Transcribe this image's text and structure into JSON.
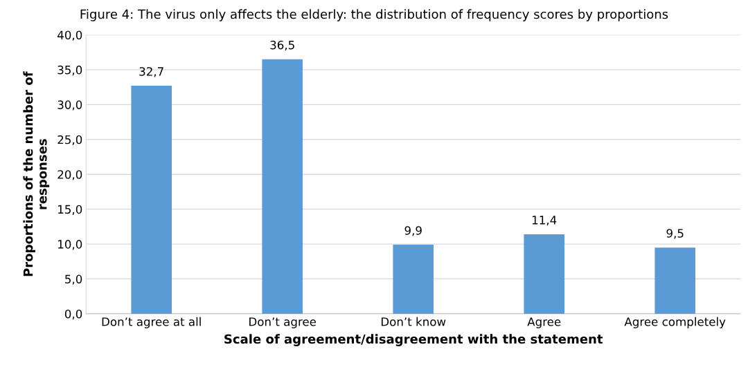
{
  "chart_data": {
    "type": "bar",
    "title": "Figure 4: The virus only affects the elderly: the distribution of frequency scores by proportions",
    "xlabel": "Scale of agreement/disagreement with the statement",
    "ylabel": "Proportions of the number of\nresponses",
    "categories": [
      "Don’t agree at all",
      "Don’t agree",
      "Don’t know",
      "Agree",
      "Agree completely"
    ],
    "values": [
      32.7,
      36.5,
      9.9,
      11.4,
      9.5
    ],
    "value_labels": [
      "32,7",
      "36,5",
      "9,9",
      "11,4",
      "9,5"
    ],
    "color": "#5b9bd5",
    "ylim": [
      0,
      40
    ],
    "yticks": [
      {
        "value": 0,
        "label": "0,0"
      },
      {
        "value": 5,
        "label": "5,0"
      },
      {
        "value": 10,
        "label": "10,0"
      },
      {
        "value": 15,
        "label": "15,0"
      },
      {
        "value": 20,
        "label": "20,0"
      },
      {
        "value": 25,
        "label": "25,0"
      },
      {
        "value": 30,
        "label": "30,0"
      },
      {
        "value": 35,
        "label": "35,0"
      },
      {
        "value": 40,
        "label": "40,0"
      }
    ],
    "grid": "y",
    "legend": false
  }
}
